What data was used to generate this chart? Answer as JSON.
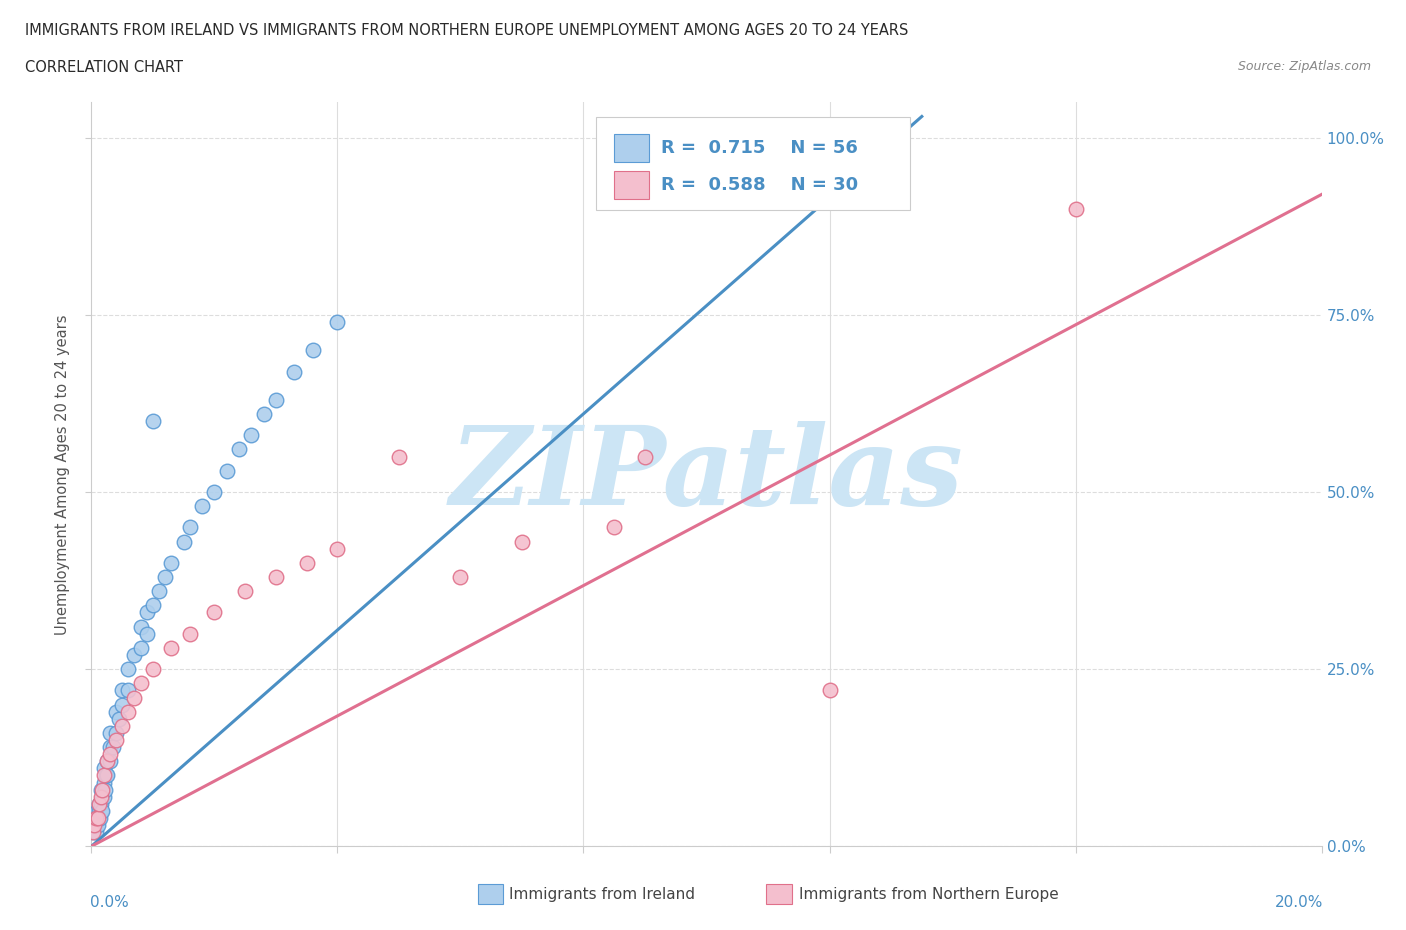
{
  "title_line1": "IMMIGRANTS FROM IRELAND VS IMMIGRANTS FROM NORTHERN EUROPE UNEMPLOYMENT AMONG AGES 20 TO 24 YEARS",
  "title_line2": "CORRELATION CHART",
  "source_text": "Source: ZipAtlas.com",
  "ylabel": "Unemployment Among Ages 20 to 24 years",
  "xlim": [
    0.0,
    0.2
  ],
  "ylim": [
    0.0,
    1.05
  ],
  "ytick_vals": [
    0.0,
    0.25,
    0.5,
    0.75,
    1.0
  ],
  "ytick_labels": [
    "0.0%",
    "25.0%",
    "50.0%",
    "75.0%",
    "100.0%"
  ],
  "xtick_vals": [
    0.0,
    0.04,
    0.08,
    0.12,
    0.16,
    0.2
  ],
  "ireland_R": 0.715,
  "ireland_N": 56,
  "northern_R": 0.588,
  "northern_N": 30,
  "ireland_face_color": "#aecfed",
  "ireland_edge_color": "#5b9bd5",
  "northern_face_color": "#f4bfce",
  "northern_edge_color": "#e0708a",
  "ireland_line_color": "#4a8fc4",
  "northern_line_color": "#e07090",
  "legend_text_color": "#4a8fc4",
  "right_tick_color": "#4a8fc4",
  "watermark_color": "#cce5f5",
  "watermark_text": "ZIPatlas",
  "ireland_trend_x": [
    0.0,
    0.135
  ],
  "ireland_trend_y": [
    0.0,
    1.03
  ],
  "northern_trend_x": [
    0.0,
    0.2
  ],
  "northern_trend_y": [
    0.0,
    0.92
  ],
  "ireland_x": [
    0.0003,
    0.0005,
    0.0006,
    0.0007,
    0.0008,
    0.0009,
    0.001,
    0.001,
    0.0012,
    0.0013,
    0.0014,
    0.0015,
    0.0015,
    0.0016,
    0.0017,
    0.0018,
    0.002,
    0.002,
    0.002,
    0.0022,
    0.0023,
    0.0025,
    0.0025,
    0.003,
    0.003,
    0.003,
    0.0035,
    0.004,
    0.004,
    0.0045,
    0.005,
    0.005,
    0.006,
    0.006,
    0.007,
    0.008,
    0.008,
    0.009,
    0.009,
    0.01,
    0.011,
    0.012,
    0.013,
    0.015,
    0.016,
    0.018,
    0.02,
    0.022,
    0.024,
    0.026,
    0.028,
    0.03,
    0.033,
    0.036,
    0.04,
    0.01
  ],
  "ireland_y": [
    0.02,
    0.03,
    0.04,
    0.02,
    0.03,
    0.05,
    0.03,
    0.04,
    0.05,
    0.06,
    0.04,
    0.05,
    0.08,
    0.06,
    0.07,
    0.05,
    0.07,
    0.09,
    0.11,
    0.08,
    0.1,
    0.1,
    0.12,
    0.12,
    0.14,
    0.16,
    0.14,
    0.16,
    0.19,
    0.18,
    0.2,
    0.22,
    0.22,
    0.25,
    0.27,
    0.28,
    0.31,
    0.3,
    0.33,
    0.34,
    0.36,
    0.38,
    0.4,
    0.43,
    0.45,
    0.48,
    0.5,
    0.53,
    0.56,
    0.58,
    0.61,
    0.63,
    0.67,
    0.7,
    0.74,
    0.6
  ],
  "northern_x": [
    0.0003,
    0.0005,
    0.0007,
    0.001,
    0.0013,
    0.0015,
    0.0018,
    0.002,
    0.0025,
    0.003,
    0.004,
    0.005,
    0.006,
    0.007,
    0.008,
    0.01,
    0.013,
    0.016,
    0.02,
    0.025,
    0.03,
    0.035,
    0.04,
    0.05,
    0.06,
    0.07,
    0.085,
    0.09,
    0.12,
    0.16
  ],
  "northern_y": [
    0.02,
    0.03,
    0.04,
    0.04,
    0.06,
    0.07,
    0.08,
    0.1,
    0.12,
    0.13,
    0.15,
    0.17,
    0.19,
    0.21,
    0.23,
    0.25,
    0.28,
    0.3,
    0.33,
    0.36,
    0.38,
    0.4,
    0.42,
    0.55,
    0.38,
    0.43,
    0.45,
    0.55,
    0.22,
    0.9
  ],
  "background_color": "#ffffff",
  "grid_color": "#dddddd",
  "spine_color": "#cccccc"
}
